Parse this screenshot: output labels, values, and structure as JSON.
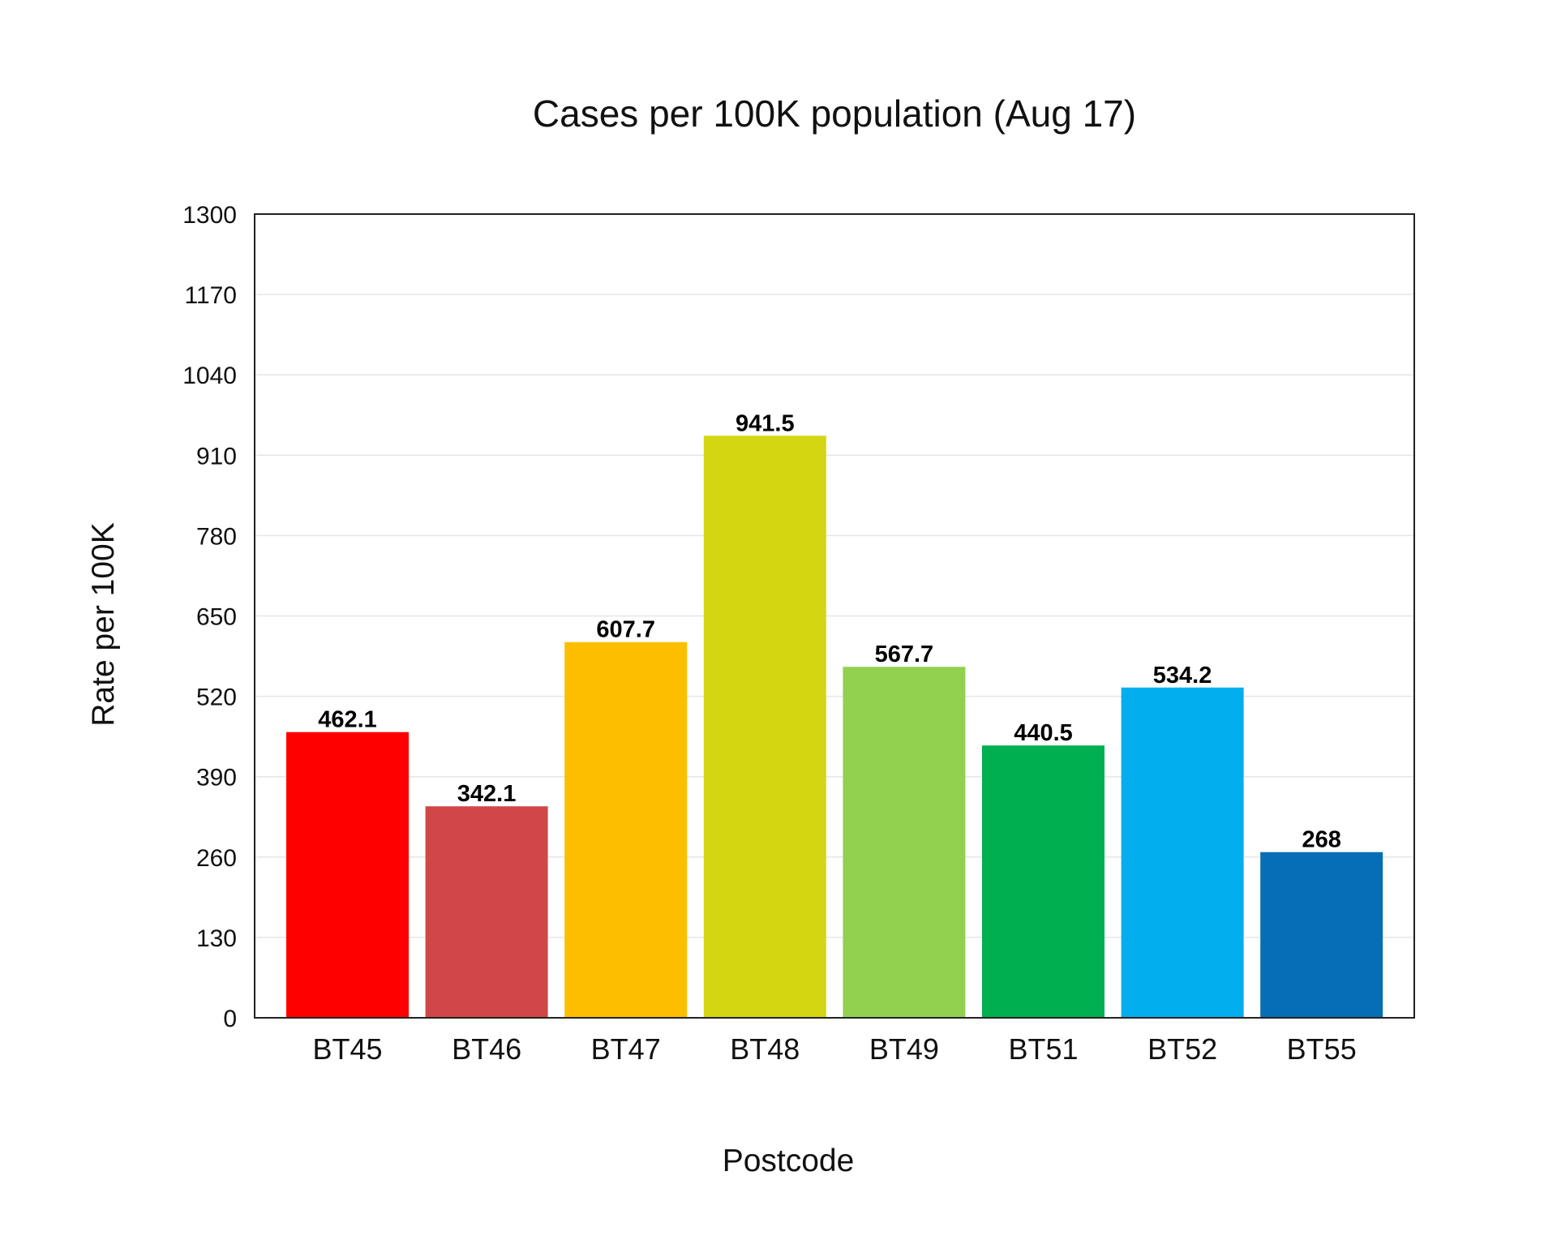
{
  "chart_data": {
    "type": "bar",
    "title": "Cases per 100K population (Aug 17)",
    "xlabel": "Postcode",
    "ylabel": "Rate per 100K",
    "categories": [
      "BT45",
      "BT46",
      "BT47",
      "BT48",
      "BT49",
      "BT51",
      "BT52",
      "BT55"
    ],
    "values": [
      462.1,
      342.1,
      607.7,
      941.5,
      567.7,
      440.5,
      534.2,
      268
    ],
    "value_labels": [
      "462.1",
      "342.1",
      "607.7",
      "941.5",
      "567.7",
      "440.5",
      "534.2",
      "268"
    ],
    "colors": [
      "#ff0000",
      "#d14747",
      "#fdbe00",
      "#d4d611",
      "#92d050",
      "#00b050",
      "#03aeef",
      "#066eb6"
    ],
    "ylim": [
      0,
      1300
    ],
    "yticks": [
      0,
      130,
      260,
      390,
      520,
      650,
      780,
      910,
      1040,
      1170,
      1300
    ],
    "grid": true,
    "legend": "none"
  }
}
